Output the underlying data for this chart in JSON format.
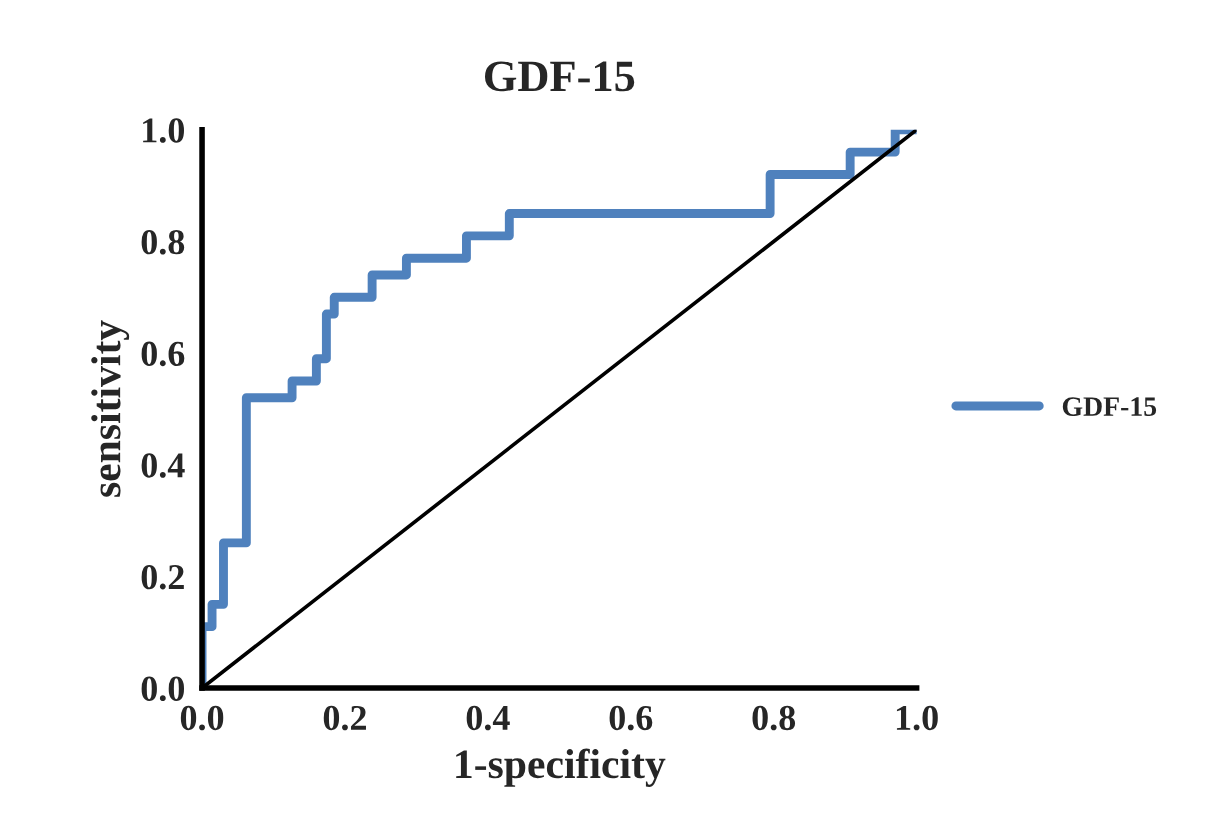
{
  "chart_data": {
    "type": "step",
    "title": "GDF-15",
    "xlabel": "1-specificity",
    "ylabel": "sensitivity",
    "xlim": [
      0,
      1
    ],
    "ylim": [
      0,
      1
    ],
    "xticks": [
      {
        "value": 0,
        "label": "0.0"
      },
      {
        "value": 0.2,
        "label": "0.2"
      },
      {
        "value": 0.4,
        "label": "0.4"
      },
      {
        "value": 0.6,
        "label": "0.6"
      },
      {
        "value": 0.8,
        "label": "0.8"
      },
      {
        "value": 1,
        "label": "1.0"
      }
    ],
    "yticks": [
      {
        "value": 0,
        "label": "0.0"
      },
      {
        "value": 0.2,
        "label": "0.2"
      },
      {
        "value": 0.4,
        "label": "0.4"
      },
      {
        "value": 0.6,
        "label": "0.6"
      },
      {
        "value": 0.8,
        "label": "0.8"
      },
      {
        "value": 1,
        "label": "1.0"
      }
    ],
    "grid": false,
    "legend": "right",
    "series": [
      {
        "name": "GDF-15",
        "color": "#4f81bd",
        "x": [
          0,
          0,
          0.014,
          0.03,
          0.062,
          0.126,
          0.16,
          0.174,
          0.185,
          0.238,
          0.286,
          0.37,
          0.43,
          0.795,
          0.907,
          0.97,
          1.0
        ],
        "values": [
          0,
          0.11,
          0.15,
          0.26,
          0.52,
          0.55,
          0.59,
          0.67,
          0.7,
          0.74,
          0.77,
          0.81,
          0.85,
          0.92,
          0.96,
          1.0,
          1.0
        ]
      },
      {
        "color": "#000000",
        "type": "line",
        "x": [
          0,
          1
        ],
        "values": [
          0,
          1
        ]
      }
    ]
  }
}
